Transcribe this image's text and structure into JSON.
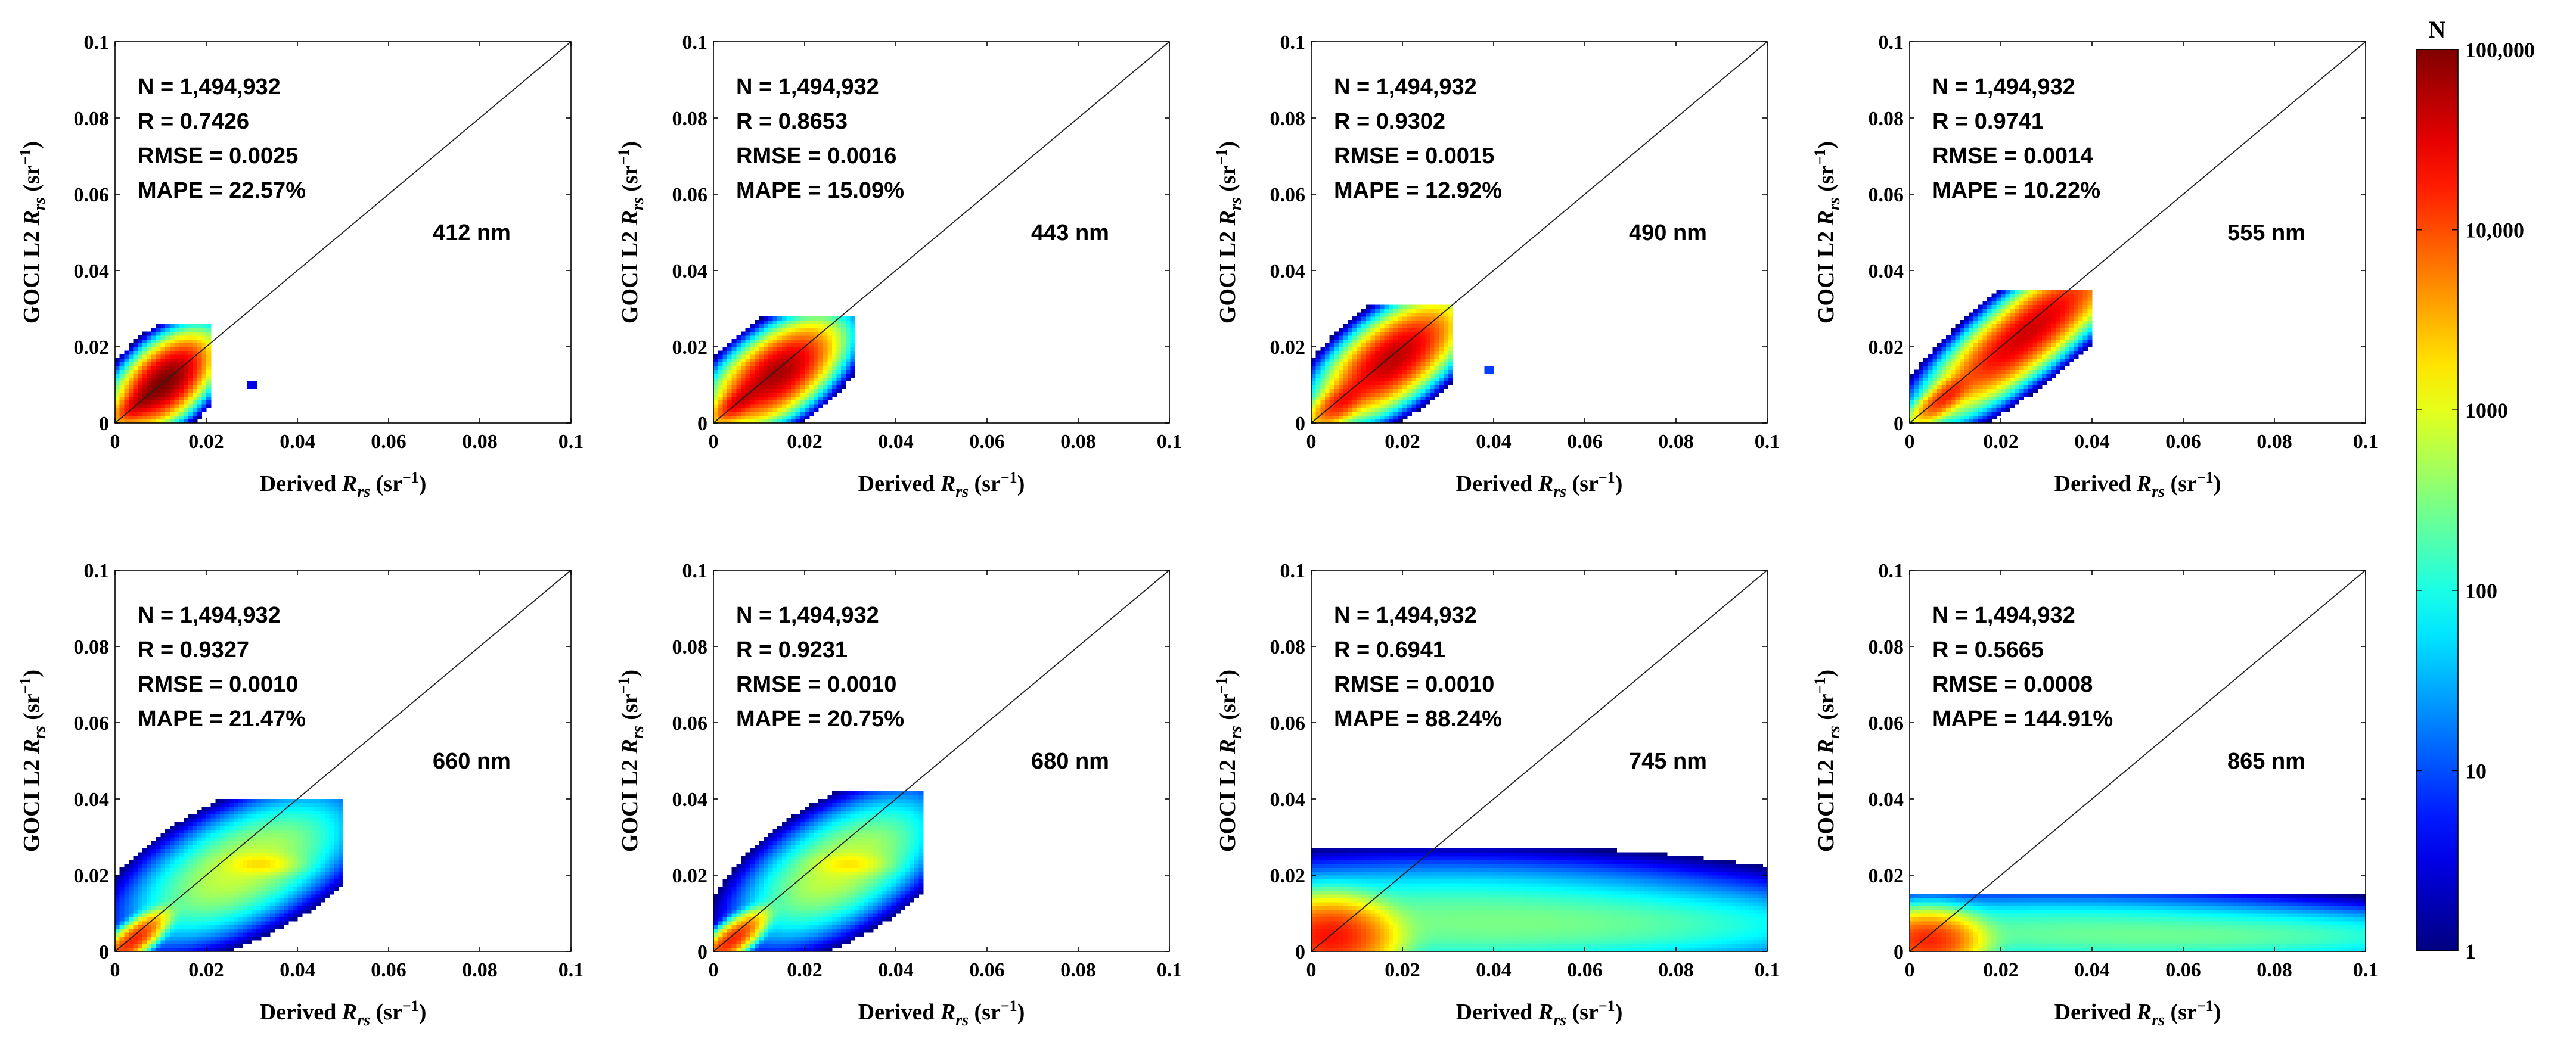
{
  "chart_data": [
    {
      "type": "heatmap",
      "band": "412 nm",
      "stats": {
        "n": "N = 1,494,932",
        "r": "R = 0.7426",
        "rmse": "RMSE = 0.0025",
        "mape": "MAPE = 22.57%"
      },
      "xlabel_main": "Derived",
      "ylabel_main": "GOCI L2",
      "unit_open": "(sr",
      "unit_exp": "−1",
      "unit_close": ")",
      "var": "R",
      "var_sub": "rs",
      "xlim": [
        0,
        0.1
      ],
      "ylim": [
        0,
        0.1
      ],
      "xticks": [
        "0",
        "0.02",
        "0.04",
        "0.06",
        "0.08",
        "0.1"
      ],
      "yticks": [
        "0",
        "0.02",
        "0.04",
        "0.06",
        "0.08",
        "0.1"
      ],
      "one_to_one_line": true,
      "density_blobs": [
        {
          "x": 0.011,
          "y": 0.011,
          "sx": 0.0035,
          "sy": 0.004,
          "rho": 0.55,
          "peak": 5.0,
          "mask_x": [
            0,
            0.021
          ],
          "mask_y": [
            0,
            0.026
          ]
        },
        {
          "x": 0.006,
          "y": 0.006,
          "sx": 0.0025,
          "sy": 0.0025,
          "rho": 0.7,
          "peak": 4.6
        },
        {
          "x": 0.03,
          "y": 0.01,
          "sx": 0.0004,
          "sy": 0.0004,
          "rho": 0,
          "peak": 1.2
        }
      ]
    },
    {
      "type": "heatmap",
      "band": "443 nm",
      "stats": {
        "n": "N = 1,494,932",
        "r": "R = 0.8653",
        "rmse": "RMSE = 0.0016",
        "mape": "MAPE = 15.09%"
      },
      "xlabel_main": "Derived",
      "ylabel_main": "GOCI L2",
      "unit_open": "(sr",
      "unit_exp": "−1",
      "unit_close": ")",
      "var": "R",
      "var_sub": "rs",
      "xlim": [
        0,
        0.1
      ],
      "ylim": [
        0,
        0.1
      ],
      "xticks": [
        "0",
        "0.02",
        "0.04",
        "0.06",
        "0.08",
        "0.1"
      ],
      "yticks": [
        "0",
        "0.02",
        "0.04",
        "0.06",
        "0.08",
        "0.1"
      ],
      "one_to_one_line": true,
      "density_blobs": [
        {
          "x": 0.014,
          "y": 0.013,
          "sx": 0.0045,
          "sy": 0.0045,
          "rho": 0.6,
          "peak": 4.8,
          "mask_x": [
            0,
            0.031
          ],
          "mask_y": [
            0,
            0.028
          ]
        },
        {
          "x": 0.006,
          "y": 0.006,
          "sx": 0.0025,
          "sy": 0.0025,
          "rho": 0.7,
          "peak": 4.5
        }
      ]
    },
    {
      "type": "heatmap",
      "band": "490 nm",
      "stats": {
        "n": "N = 1,494,932",
        "r": "R = 0.9302",
        "rmse": "RMSE = 0.0015",
        "mape": "MAPE = 12.92%"
      },
      "xlabel_main": "Derived",
      "ylabel_main": "GOCI L2",
      "unit_open": "(sr",
      "unit_exp": "−1",
      "unit_close": ")",
      "var": "R",
      "var_sub": "rs",
      "xlim": [
        0,
        0.1
      ],
      "ylim": [
        0,
        0.1
      ],
      "xticks": [
        "0",
        "0.02",
        "0.04",
        "0.06",
        "0.08",
        "0.1"
      ],
      "yticks": [
        "0",
        "0.02",
        "0.04",
        "0.06",
        "0.08",
        "0.1"
      ],
      "one_to_one_line": true,
      "density_blobs": [
        {
          "x": 0.018,
          "y": 0.017,
          "sx": 0.005,
          "sy": 0.005,
          "rho": 0.65,
          "peak": 4.7,
          "mask_x": [
            0,
            0.031
          ],
          "mask_y": [
            0,
            0.031
          ]
        },
        {
          "x": 0.007,
          "y": 0.006,
          "sx": 0.003,
          "sy": 0.003,
          "rho": 0.7,
          "peak": 4.3
        },
        {
          "x": 0.039,
          "y": 0.014,
          "sx": 0.0006,
          "sy": 0.0005,
          "rho": 0,
          "peak": 1.3
        }
      ]
    },
    {
      "type": "heatmap",
      "band": "555 nm",
      "stats": {
        "n": "N = 1,494,932",
        "r": "R = 0.9741",
        "rmse": "RMSE = 0.0014",
        "mape": "MAPE = 10.22%"
      },
      "xlabel_main": "Derived",
      "ylabel_main": "GOCI L2",
      "unit_open": "(sr",
      "unit_exp": "−1",
      "unit_close": ")",
      "var": "R",
      "var_sub": "rs",
      "xlim": [
        0,
        0.1
      ],
      "ylim": [
        0,
        0.1
      ],
      "xticks": [
        "0",
        "0.02",
        "0.04",
        "0.06",
        "0.08",
        "0.1"
      ],
      "yticks": [
        "0",
        "0.02",
        "0.04",
        "0.06",
        "0.08",
        "0.1"
      ],
      "one_to_one_line": true,
      "density_blobs": [
        {
          "x": 0.026,
          "y": 0.024,
          "sx": 0.007,
          "sy": 0.007,
          "rho": 0.85,
          "peak": 4.6,
          "mask_x": [
            0,
            0.04
          ],
          "mask_y": [
            0,
            0.035
          ]
        },
        {
          "x": 0.008,
          "y": 0.007,
          "sx": 0.003,
          "sy": 0.003,
          "rho": 0.8,
          "peak": 4.2
        }
      ]
    },
    {
      "type": "heatmap",
      "band": "660 nm",
      "stats": {
        "n": "N = 1,494,932",
        "r": "R = 0.9327",
        "rmse": "RMSE = 0.0010",
        "mape": "MAPE = 21.47%"
      },
      "xlabel_main": "Derived",
      "ylabel_main": "GOCI L2",
      "unit_open": "(sr",
      "unit_exp": "−1",
      "unit_close": ")",
      "var": "R",
      "var_sub": "rs",
      "xlim": [
        0,
        0.1
      ],
      "ylim": [
        0,
        0.1
      ],
      "xticks": [
        "0",
        "0.02",
        "0.04",
        "0.06",
        "0.08",
        "0.1"
      ],
      "yticks": [
        "0",
        "0.02",
        "0.04",
        "0.06",
        "0.08",
        "0.1"
      ],
      "one_to_one_line": true,
      "density_blobs": [
        {
          "x": 0.028,
          "y": 0.022,
          "sx": 0.009,
          "sy": 0.007,
          "rho": 0.6,
          "peak": 2.9,
          "mask_x": [
            0,
            0.05
          ],
          "mask_y": [
            0,
            0.04
          ]
        },
        {
          "x": 0.004,
          "y": 0.003,
          "sx": 0.003,
          "sy": 0.003,
          "rho": 0.8,
          "peak": 4.2
        },
        {
          "x": 0.032,
          "y": 0.023,
          "sx": 0.004,
          "sy": 0.0015,
          "rho": 0,
          "peak": 3.1
        }
      ]
    },
    {
      "type": "heatmap",
      "band": "680 nm",
      "stats": {
        "n": "N = 1,494,932",
        "r": "R = 0.9231",
        "rmse": "RMSE = 0.0010",
        "mape": "MAPE = 20.75%"
      },
      "xlabel_main": "Derived",
      "ylabel_main": "GOCI L2",
      "unit_open": "(sr",
      "unit_exp": "−1",
      "unit_close": ")",
      "var": "R",
      "var_sub": "rs",
      "xlim": [
        0,
        0.1
      ],
      "ylim": [
        0,
        0.1
      ],
      "xticks": [
        "0",
        "0.02",
        "0.04",
        "0.06",
        "0.08",
        "0.1"
      ],
      "yticks": [
        "0",
        "0.02",
        "0.04",
        "0.06",
        "0.08",
        "0.1"
      ],
      "one_to_one_line": true,
      "density_blobs": [
        {
          "x": 0.028,
          "y": 0.022,
          "sx": 0.008,
          "sy": 0.007,
          "rho": 0.6,
          "peak": 2.9,
          "mask_x": [
            0,
            0.046
          ],
          "mask_y": [
            0,
            0.042
          ]
        },
        {
          "x": 0.004,
          "y": 0.003,
          "sx": 0.003,
          "sy": 0.003,
          "rho": 0.8,
          "peak": 4.2
        },
        {
          "x": 0.03,
          "y": 0.023,
          "sx": 0.004,
          "sy": 0.0015,
          "rho": 0,
          "peak": 3.0
        }
      ]
    },
    {
      "type": "heatmap",
      "band": "745 nm",
      "stats": {
        "n": "N = 1,494,932",
        "r": "R = 0.6941",
        "rmse": "RMSE = 0.0010",
        "mape": "MAPE = 88.24%"
      },
      "xlabel_main": "Derived",
      "ylabel_main": "GOCI L2",
      "unit_open": "(sr",
      "unit_exp": "−1",
      "unit_close": ")",
      "var": "R",
      "var_sub": "rs",
      "xlim": [
        0,
        0.1
      ],
      "ylim": [
        0,
        0.1
      ],
      "xticks": [
        "0",
        "0.02",
        "0.04",
        "0.06",
        "0.08",
        "0.1"
      ],
      "yticks": [
        "0",
        "0.02",
        "0.04",
        "0.06",
        "0.08",
        "0.1"
      ],
      "one_to_one_line": true,
      "density_blobs": [
        {
          "x": 0.004,
          "y": 0.004,
          "sx": 0.006,
          "sy": 0.004,
          "rho": 0,
          "peak": 4.3,
          "mask_x": [
            0,
            0.1
          ],
          "mask_y": [
            0,
            0.027
          ]
        },
        {
          "x": 0.03,
          "y": 0.008,
          "sx": 0.03,
          "sy": 0.006,
          "rho": 0,
          "peak": 2.4
        },
        {
          "x": 0.07,
          "y": 0.007,
          "sx": 0.025,
          "sy": 0.004,
          "rho": 0,
          "peak": 2.1
        }
      ]
    },
    {
      "type": "heatmap",
      "band": "865 nm",
      "stats": {
        "n": "N = 1,494,932",
        "r": "R = 0.5665",
        "rmse": "RMSE = 0.0008",
        "mape": "MAPE = 144.91%"
      },
      "xlabel_main": "Derived",
      "ylabel_main": "GOCI L2",
      "unit_open": "(sr",
      "unit_exp": "−1",
      "unit_close": ")",
      "var": "R",
      "var_sub": "rs",
      "xlim": [
        0,
        0.1
      ],
      "ylim": [
        0,
        0.1
      ],
      "xticks": [
        "0",
        "0.02",
        "0.04",
        "0.06",
        "0.08",
        "0.1"
      ],
      "yticks": [
        "0",
        "0.02",
        "0.04",
        "0.06",
        "0.08",
        "0.1"
      ],
      "one_to_one_line": true,
      "density_blobs": [
        {
          "x": 0.004,
          "y": 0.003,
          "sx": 0.005,
          "sy": 0.003,
          "rho": 0,
          "peak": 4.2,
          "mask_x": [
            0,
            0.1
          ],
          "mask_y": [
            0,
            0.015
          ]
        },
        {
          "x": 0.03,
          "y": 0.005,
          "sx": 0.03,
          "sy": 0.004,
          "rho": 0,
          "peak": 2.3
        },
        {
          "x": 0.075,
          "y": 0.004,
          "sx": 0.025,
          "sy": 0.003,
          "rho": 0,
          "peak": 2.2
        }
      ]
    }
  ],
  "colorbar": {
    "label": "N",
    "scale": "log",
    "range": [
      1,
      100000
    ],
    "ticks": [
      {
        "value": 100000,
        "label": "100,000"
      },
      {
        "value": 10000,
        "label": "10,000"
      },
      {
        "value": 1000,
        "label": "1000"
      },
      {
        "value": 100,
        "label": "100"
      },
      {
        "value": 10,
        "label": "10"
      },
      {
        "value": 1,
        "label": "1"
      }
    ],
    "colormap": "jet"
  }
}
